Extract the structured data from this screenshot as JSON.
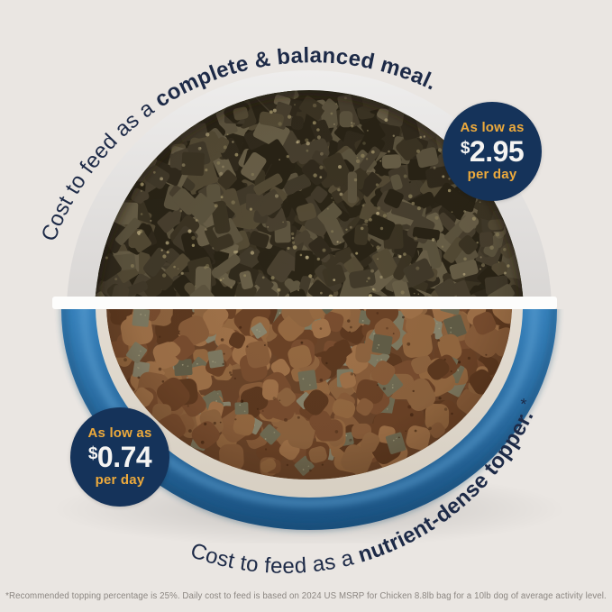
{
  "arcs": {
    "top": {
      "regular": "Cost to feed as a ",
      "bold": "complete & balanced meal."
    },
    "bottom": {
      "regular": "Cost to feed as a ",
      "bold": "nutrient-dense topper.",
      "suffix": " *"
    }
  },
  "badges": {
    "meal": {
      "lead": "As low as",
      "currency": "$",
      "amount": "2.95",
      "per": "per day"
    },
    "topper": {
      "lead": "As low as",
      "currency": "$",
      "amount": "0.74",
      "per": "per day"
    }
  },
  "footnote": "*Recommended topping percentage is 25%. Daily cost to feed is based on 2024 US MSRP for Chicken 8.8lb bag for a 10lb dog of average activity level.",
  "colors": {
    "background": "#eae6e2",
    "ink": "#1d2a47",
    "navy": "#15335a",
    "gold": "#edaa3c",
    "price_white": "#f5f4f2",
    "footnote_gray": "#8b8681",
    "gap_white": "#fdfdfc",
    "rim_light": "#eeedec",
    "rim_mid": "#d6d3d1",
    "rim_dark": "#bfbcba",
    "blue_top": "#2a6da6",
    "blue_mid": "#3a86c1",
    "blue_deep": "#1a5180",
    "blue_highlight": "#5da0d2",
    "cream_light": "#f0eae2",
    "cream_dark": "#d7cfc2",
    "meal_base": "#2b2517",
    "kibble_base": "#6b452a",
    "meal_food": [
      "#3d3524",
      "#4a4130",
      "#322b1d",
      "#564c36",
      "#2a2416",
      "#5f5640",
      "#433b2b",
      "#6b6149"
    ],
    "meal_speckle": [
      "#a89a6c",
      "#bfb084",
      "#91855e"
    ],
    "kibble": [
      "#8a5e3b",
      "#7a4e30",
      "#966a42",
      "#6c4327",
      "#a1734a",
      "#5d3920",
      "#8f6540"
    ],
    "topper_cube": [
      "#716e56",
      "#7f7c64",
      "#625f49",
      "#8a8770"
    ],
    "cube_speckle": "#a7a383"
  }
}
